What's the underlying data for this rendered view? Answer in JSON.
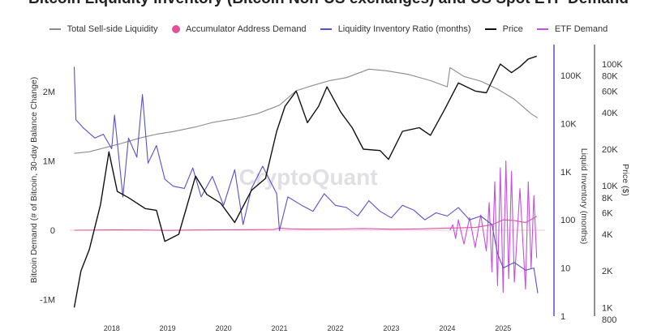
{
  "chart_data": {
    "type": "line",
    "title": "Bitcoin Liquidity Inventory (Bitcoin Non-US exchanges) and US Spot ETF Demand",
    "watermark": "CryptoQuant",
    "left_axis": {
      "label": "Bitcoin Demand (# of Bitcoin, 30-day Balance Change)",
      "ticks": [
        "2M",
        "1M",
        "0",
        "-1M"
      ],
      "tick_values": [
        2000000,
        1000000,
        0,
        -1000000
      ],
      "range": [
        -1000000,
        2000000
      ]
    },
    "inventory_axis": {
      "label": "Liquid Inventory (months)",
      "scale": "log",
      "ticks": [
        "100K",
        "10K",
        "1K",
        "100",
        "10",
        "1"
      ],
      "tick_values": [
        100000,
        10000,
        1000,
        100,
        10,
        1
      ],
      "color": "#5a4fcf"
    },
    "price_axis": {
      "label": "Price ($)",
      "scale": "log",
      "ticks": [
        "100K",
        "80K",
        "60K",
        "40K",
        "20K",
        "10K",
        "8K",
        "6K",
        "4K",
        "2K",
        "1K",
        "800"
      ],
      "tick_values": [
        100000,
        80000,
        60000,
        40000,
        20000,
        10000,
        8000,
        6000,
        4000,
        2000,
        1000,
        800
      ]
    },
    "x_axis": {
      "ticks": [
        "2018",
        "2019",
        "2020",
        "2021",
        "2022",
        "2023",
        "2024",
        "2025"
      ],
      "tick_values": [
        2018,
        2019,
        2020,
        2021,
        2022,
        2023,
        2024,
        2025
      ],
      "range": [
        2017.25,
        2025.75
      ]
    },
    "legend_position": "top",
    "grid": false,
    "series": [
      {
        "name": "Total Sell-side Liquidity",
        "color": "#8c8c8c",
        "axis": "inventory",
        "points": [
          [
            2017.33,
            2400
          ],
          [
            2017.6,
            2600
          ],
          [
            2017.9,
            3200
          ],
          [
            2018.15,
            3800
          ],
          [
            2018.5,
            5000
          ],
          [
            2018.8,
            6000
          ],
          [
            2019.1,
            6800
          ],
          [
            2019.5,
            8500
          ],
          [
            2019.8,
            10500
          ],
          [
            2020.2,
            12500
          ],
          [
            2020.6,
            16000
          ],
          [
            2021.0,
            24000
          ],
          [
            2021.3,
            48000
          ],
          [
            2021.6,
            62000
          ],
          [
            2021.9,
            78000
          ],
          [
            2022.2,
            90000
          ],
          [
            2022.6,
            135000
          ],
          [
            2022.9,
            125000
          ],
          [
            2023.3,
            105000
          ],
          [
            2023.7,
            78000
          ],
          [
            2024.0,
            58000
          ],
          [
            2024.05,
            145000
          ],
          [
            2024.3,
            95000
          ],
          [
            2024.6,
            76000
          ],
          [
            2024.9,
            52000
          ],
          [
            2025.2,
            32000
          ],
          [
            2025.5,
            16000
          ],
          [
            2025.62,
            13000
          ]
        ]
      },
      {
        "name": "Accumulator Address Demand",
        "color": "#e0529b",
        "axis": "demand",
        "points": [
          [
            2017.33,
            0
          ],
          [
            2018.0,
            5000
          ],
          [
            2018.5,
            3000
          ],
          [
            2019.0,
            -2000
          ],
          [
            2019.5,
            4000
          ],
          [
            2020.0,
            6000
          ],
          [
            2020.5,
            8000
          ],
          [
            2020.9,
            12000
          ],
          [
            2021.0,
            30000
          ],
          [
            2021.2,
            20000
          ],
          [
            2021.5,
            15000
          ],
          [
            2022.0,
            18000
          ],
          [
            2022.5,
            25000
          ],
          [
            2023.0,
            15000
          ],
          [
            2023.5,
            20000
          ],
          [
            2024.0,
            30000
          ],
          [
            2024.5,
            40000
          ],
          [
            2024.8,
            80000
          ],
          [
            2025.0,
            150000
          ],
          [
            2025.2,
            140000
          ],
          [
            2025.4,
            110000
          ],
          [
            2025.6,
            200000
          ]
        ]
      },
      {
        "name": "Liquidity Inventory Ratio (months)",
        "color": "#5a4fcf",
        "axis": "inventory",
        "points": [
          [
            2017.33,
            150000
          ],
          [
            2017.36,
            12000
          ],
          [
            2017.5,
            8000
          ],
          [
            2017.7,
            5000
          ],
          [
            2017.85,
            6000
          ],
          [
            2018.0,
            3000
          ],
          [
            2018.05,
            15000
          ],
          [
            2018.2,
            300
          ],
          [
            2018.3,
            5000
          ],
          [
            2018.45,
            2000
          ],
          [
            2018.55,
            40000
          ],
          [
            2018.65,
            1500
          ],
          [
            2018.8,
            3500
          ],
          [
            2018.95,
            700
          ],
          [
            2019.1,
            500
          ],
          [
            2019.3,
            450
          ],
          [
            2019.45,
            1200
          ],
          [
            2019.6,
            300
          ],
          [
            2019.8,
            800
          ],
          [
            2020.0,
            200
          ],
          [
            2020.2,
            1100
          ],
          [
            2020.35,
            80
          ],
          [
            2020.5,
            450
          ],
          [
            2020.7,
            1300
          ],
          [
            2020.95,
            350
          ],
          [
            2021.0,
            60
          ],
          [
            2021.15,
            300
          ],
          [
            2021.4,
            200
          ],
          [
            2021.6,
            150
          ],
          [
            2021.8,
            350
          ],
          [
            2022.0,
            200
          ],
          [
            2022.2,
            180
          ],
          [
            2022.4,
            120
          ],
          [
            2022.6,
            250
          ],
          [
            2022.8,
            150
          ],
          [
            2023.0,
            110
          ],
          [
            2023.2,
            200
          ],
          [
            2023.4,
            160
          ],
          [
            2023.6,
            100
          ],
          [
            2023.8,
            140
          ],
          [
            2024.0,
            120
          ],
          [
            2024.2,
            180
          ],
          [
            2024.4,
            100
          ],
          [
            2024.6,
            120
          ],
          [
            2024.8,
            80
          ],
          [
            2024.9,
            20
          ],
          [
            2025.0,
            10
          ],
          [
            2025.2,
            13
          ],
          [
            2025.4,
            9
          ],
          [
            2025.55,
            10
          ],
          [
            2025.62,
            3
          ]
        ]
      },
      {
        "name": "Price",
        "color": "#111111",
        "axis": "price",
        "points": [
          [
            2017.33,
            1000
          ],
          [
            2017.45,
            2000
          ],
          [
            2017.6,
            3000
          ],
          [
            2017.8,
            7000
          ],
          [
            2017.95,
            19000
          ],
          [
            2018.1,
            9000
          ],
          [
            2018.3,
            8000
          ],
          [
            2018.6,
            6500
          ],
          [
            2018.8,
            6300
          ],
          [
            2018.95,
            3500
          ],
          [
            2019.2,
            4000
          ],
          [
            2019.5,
            12000
          ],
          [
            2019.7,
            8500
          ],
          [
            2019.95,
            7200
          ],
          [
            2020.2,
            5000
          ],
          [
            2020.5,
            9200
          ],
          [
            2020.75,
            11500
          ],
          [
            2020.95,
            28000
          ],
          [
            2021.1,
            45000
          ],
          [
            2021.3,
            60000
          ],
          [
            2021.5,
            33000
          ],
          [
            2021.7,
            45000
          ],
          [
            2021.85,
            65000
          ],
          [
            2022.1,
            40000
          ],
          [
            2022.3,
            30000
          ],
          [
            2022.5,
            20000
          ],
          [
            2022.8,
            19500
          ],
          [
            2022.95,
            16500
          ],
          [
            2023.2,
            28000
          ],
          [
            2023.5,
            30000
          ],
          [
            2023.7,
            26000
          ],
          [
            2023.95,
            42000
          ],
          [
            2024.2,
            70000
          ],
          [
            2024.5,
            60000
          ],
          [
            2024.7,
            58000
          ],
          [
            2024.95,
            100000
          ],
          [
            2025.15,
            85000
          ],
          [
            2025.3,
            95000
          ],
          [
            2025.45,
            110000
          ],
          [
            2025.6,
            116000
          ]
        ]
      },
      {
        "name": "ETF Demand",
        "color": "#c44fe0",
        "axis": "demand",
        "points": [
          [
            2024.05,
            0
          ],
          [
            2024.1,
            80000
          ],
          [
            2024.15,
            -120000
          ],
          [
            2024.2,
            150000
          ],
          [
            2024.3,
            -200000
          ],
          [
            2024.4,
            180000
          ],
          [
            2024.5,
            -250000
          ],
          [
            2024.6,
            220000
          ],
          [
            2024.7,
            -300000
          ],
          [
            2024.75,
            400000
          ],
          [
            2024.8,
            -600000
          ],
          [
            2024.85,
            700000
          ],
          [
            2024.9,
            -800000
          ],
          [
            2024.95,
            900000
          ],
          [
            2025.0,
            -900000
          ],
          [
            2025.05,
            1000000
          ],
          [
            2025.1,
            -700000
          ],
          [
            2025.15,
            850000
          ],
          [
            2025.2,
            -750000
          ],
          [
            2025.3,
            600000
          ],
          [
            2025.4,
            -850000
          ],
          [
            2025.45,
            700000
          ],
          [
            2025.5,
            -550000
          ],
          [
            2025.55,
            500000
          ],
          [
            2025.6,
            -400000
          ]
        ]
      }
    ]
  }
}
